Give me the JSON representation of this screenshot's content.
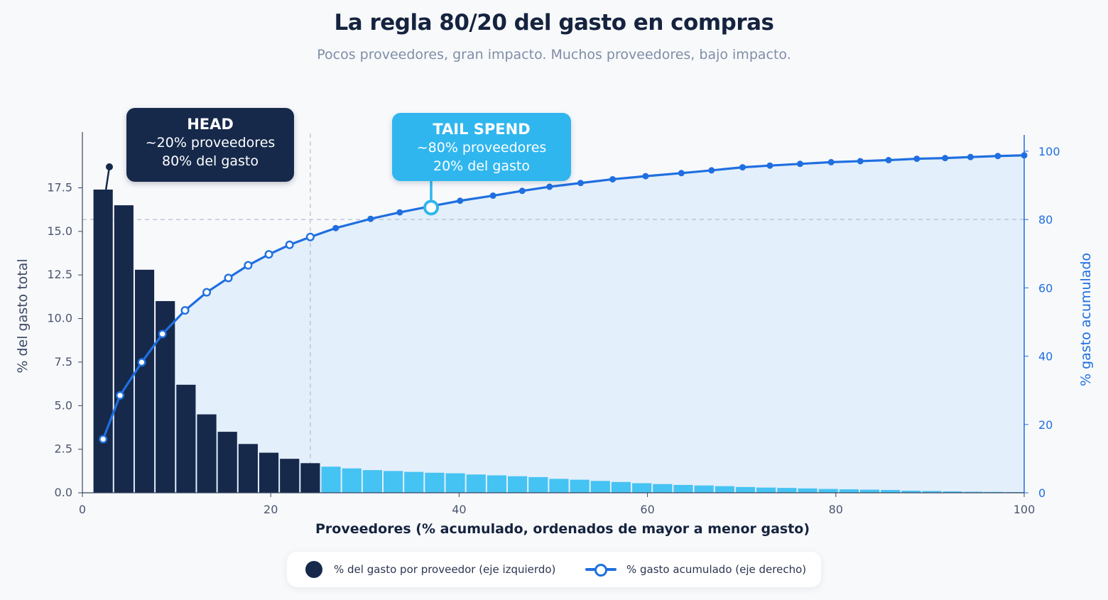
{
  "title": "La regla 80/20 del gasto en compras",
  "subtitle": "Pocos proveedores, gran impacto. Muchos proveedores, bajo impacto.",
  "colors": {
    "head": "#16294b",
    "tail": "#45c3f2",
    "line": "#1f6fe0",
    "area": "#dcebfb"
  },
  "callouts": {
    "head": {
      "title": "HEAD",
      "line1": "~20% proveedores",
      "line2": "80% del gasto"
    },
    "tail": {
      "title": "TAIL SPEND",
      "line1": "~80% proveedores",
      "line2": "20% del gasto"
    }
  },
  "legend": {
    "bars": "% del gasto por proveedor (eje izquierdo)",
    "line": "% gasto acumulado (eje derecho)"
  },
  "chart_data": {
    "type": "bar",
    "xlabel": "Proveedores (% acumulado, ordenados de mayor a menor gasto)",
    "ylabel": "% del gasto total",
    "y2label": "% gasto acumulado",
    "xlim": [
      0,
      100
    ],
    "ylim": [
      0,
      19.6
    ],
    "y2lim": [
      0,
      100
    ],
    "xticks": [
      "0",
      "20",
      "40",
      "60",
      "80",
      "100"
    ],
    "yticks": [
      "0.0",
      "2.5",
      "5.0",
      "7.5",
      "10.0",
      "12.5",
      "15.0",
      "17.5"
    ],
    "y2ticks": [
      "0",
      "20",
      "40",
      "60",
      "80",
      "100"
    ],
    "head_share_x": 24.2,
    "reference_y2": 80,
    "series": [
      {
        "name": "% del gasto por proveedor (eje izquierdo)",
        "x": [
          2.2,
          4.4,
          6.6,
          8.8,
          11.0,
          13.2,
          15.4,
          17.6,
          19.8,
          22.0,
          24.2,
          26.4,
          28.6,
          30.8,
          33.0,
          35.2,
          37.4,
          39.6,
          41.8,
          44.0,
          46.2,
          48.4,
          50.6,
          52.8,
          55.0,
          57.2,
          59.4,
          61.6,
          63.8,
          66.0,
          68.2,
          70.4,
          72.6,
          74.8,
          77.0,
          79.2,
          81.4,
          83.6,
          85.8,
          88.0,
          90.2,
          92.4,
          94.6,
          96.8,
          99.0
        ],
        "values": [
          17.4,
          16.5,
          12.8,
          11.0,
          6.2,
          4.5,
          3.5,
          2.8,
          2.3,
          1.95,
          1.7,
          1.5,
          1.4,
          1.3,
          1.25,
          1.2,
          1.15,
          1.12,
          1.05,
          1.0,
          0.95,
          0.9,
          0.8,
          0.75,
          0.68,
          0.62,
          0.55,
          0.5,
          0.45,
          0.42,
          0.38,
          0.33,
          0.3,
          0.28,
          0.25,
          0.22,
          0.2,
          0.18,
          0.16,
          0.12,
          0.1,
          0.08,
          0.06,
          0.05,
          0.04
        ]
      },
      {
        "name": "% gasto acumulado (eje derecho)",
        "x": [
          2.2,
          4.0,
          6.3,
          8.5,
          10.9,
          13.2,
          15.5,
          17.6,
          19.8,
          22.0,
          24.2,
          26.9,
          30.6,
          33.7,
          37.0,
          40.1,
          43.6,
          46.7,
          49.6,
          52.9,
          56.3,
          59.8,
          63.6,
          66.8,
          70.1,
          73.0,
          76.2,
          79.5,
          82.6,
          85.6,
          88.6,
          91.6,
          94.3,
          97.2,
          100.0
        ],
        "values": [
          15.7,
          28.5,
          38.2,
          46.5,
          53.4,
          58.7,
          62.9,
          66.6,
          69.8,
          72.6,
          74.9,
          77.5,
          80.2,
          82.1,
          83.9,
          85.5,
          87.0,
          88.4,
          89.6,
          90.7,
          91.8,
          92.7,
          93.6,
          94.4,
          95.3,
          95.8,
          96.3,
          96.8,
          97.1,
          97.4,
          97.8,
          98.0,
          98.3,
          98.6,
          98.8
        ]
      }
    ]
  }
}
